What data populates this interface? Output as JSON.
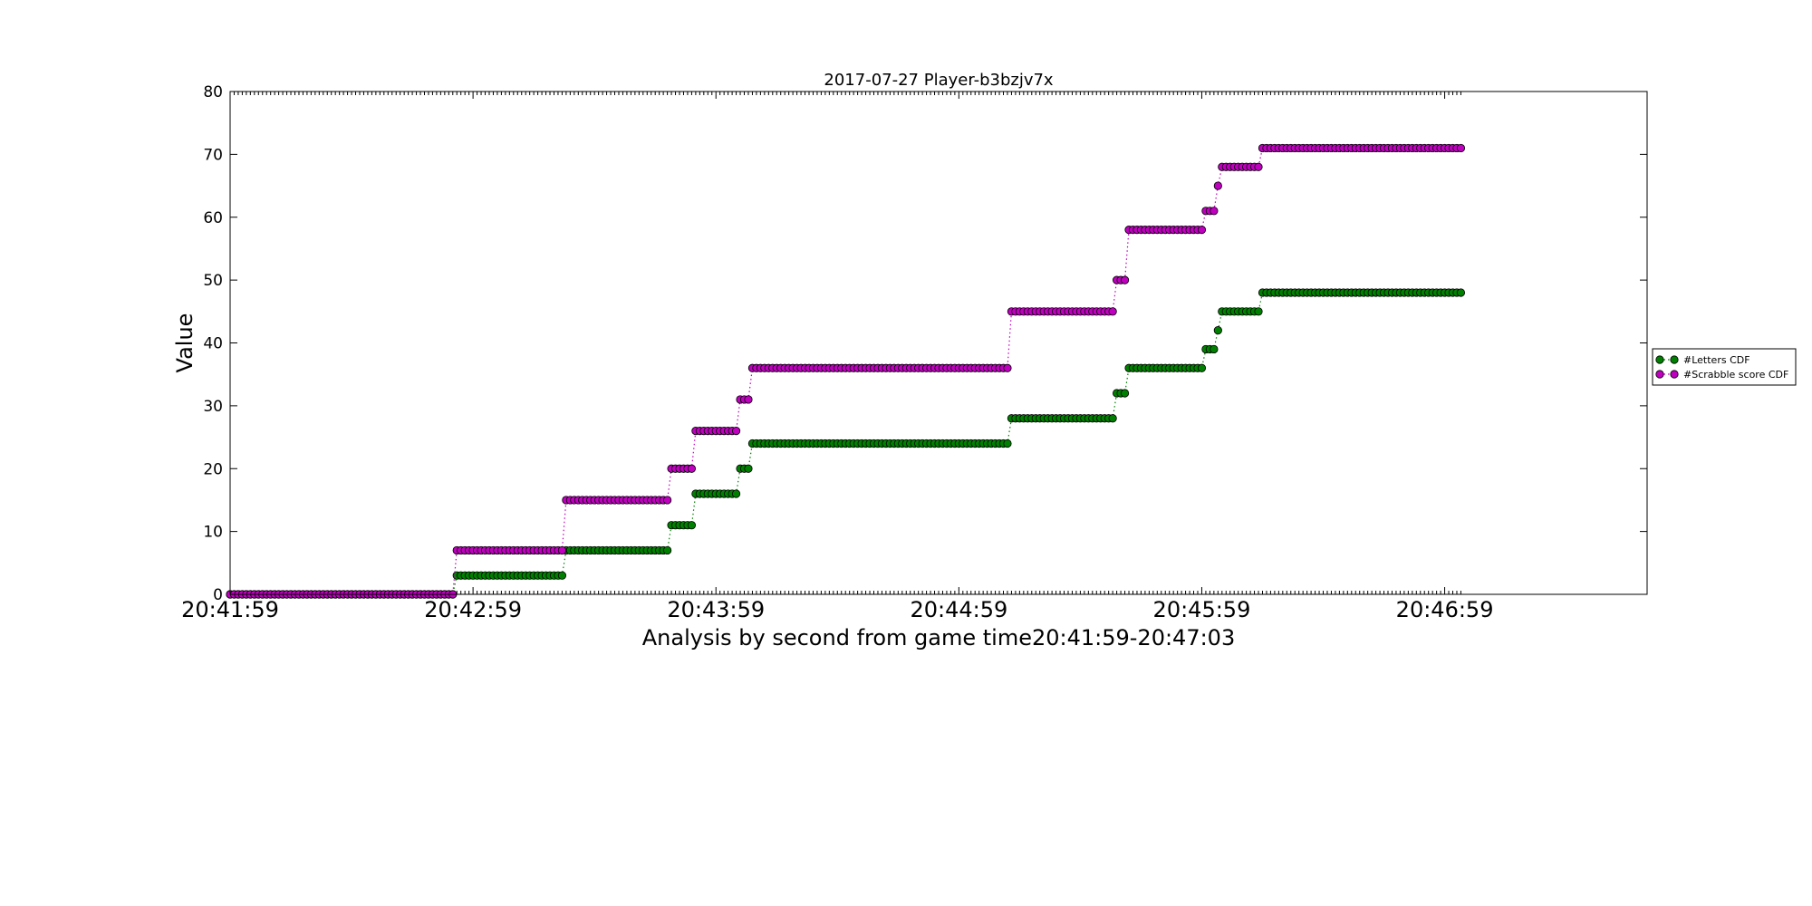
{
  "chart_data": {
    "type": "scatter",
    "title": "2017-07-27 Player-b3bzjv7x",
    "xlabel": "Analysis by second from game time20:41:59-20:47:03",
    "ylabel": "Value",
    "x_unit": "seconds from 20:41:59",
    "xlim": [
      0,
      350
    ],
    "ylim": [
      0,
      80
    ],
    "x_ticks": [
      {
        "value": 0,
        "label": "20:41:59"
      },
      {
        "value": 60,
        "label": "20:42:59"
      },
      {
        "value": 120,
        "label": "20:43:59"
      },
      {
        "value": 180,
        "label": "20:44:59"
      },
      {
        "value": 240,
        "label": "20:45:59"
      },
      {
        "value": 300,
        "label": "20:46:59"
      }
    ],
    "y_ticks": [
      0,
      10,
      20,
      30,
      40,
      50,
      60,
      70,
      80
    ],
    "grid": false,
    "legend_position": "right",
    "line_style": "dotted",
    "x_range_end": 304,
    "series": [
      {
        "name": "#Letters CDF",
        "color": "#008000",
        "steps": [
          [
            0,
            0
          ],
          [
            56,
            3
          ],
          [
            83,
            7
          ],
          [
            109,
            11
          ],
          [
            115,
            16
          ],
          [
            126,
            20
          ],
          [
            129,
            24
          ],
          [
            193,
            28
          ],
          [
            219,
            32
          ],
          [
            222,
            36
          ],
          [
            241,
            39
          ],
          [
            244,
            42
          ],
          [
            245,
            45
          ],
          [
            255,
            48
          ]
        ]
      },
      {
        "name": "#Scrabble score CDF",
        "color": "#bf00bf",
        "steps": [
          [
            0,
            0
          ],
          [
            56,
            7
          ],
          [
            83,
            15
          ],
          [
            109,
            20
          ],
          [
            115,
            26
          ],
          [
            126,
            31
          ],
          [
            129,
            36
          ],
          [
            193,
            45
          ],
          [
            219,
            50
          ],
          [
            222,
            58
          ],
          [
            241,
            61
          ],
          [
            244,
            65
          ],
          [
            245,
            68
          ],
          [
            255,
            71
          ]
        ]
      }
    ]
  }
}
